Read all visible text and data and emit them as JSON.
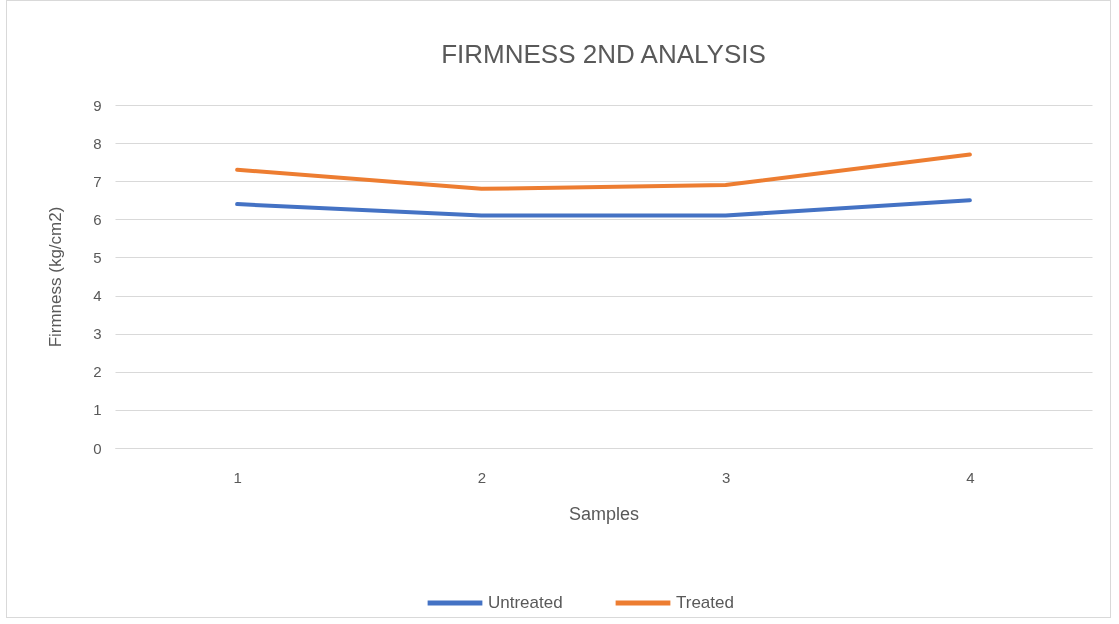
{
  "chart_data": {
    "type": "line",
    "title": "FIRMNESS  2ND ANALYSIS",
    "xlabel": "Samples",
    "ylabel": "Firmness (kg/cm2)",
    "categories": [
      "1",
      "2",
      "3",
      "4"
    ],
    "series": [
      {
        "name": "Untreated",
        "color": "#4472c4",
        "values": [
          6.4,
          6.1,
          6.1,
          6.5
        ]
      },
      {
        "name": "Treated",
        "color": "#ed7d31",
        "values": [
          7.3,
          6.8,
          6.9,
          7.7
        ]
      }
    ],
    "ylim": [
      0,
      9
    ],
    "yticks": [
      0,
      1,
      2,
      3,
      4,
      5,
      6,
      7,
      8,
      9
    ],
    "grid": "y",
    "legend": "bottom",
    "marker": "none",
    "line_style": "solid"
  }
}
